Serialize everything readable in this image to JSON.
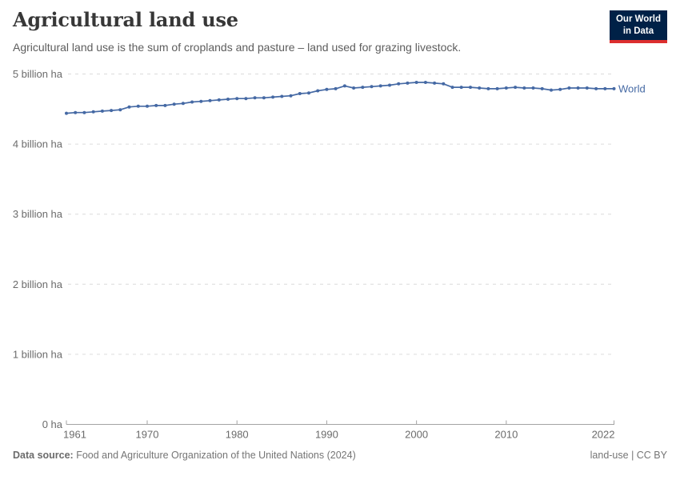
{
  "header": {
    "title": "Agricultural land use",
    "subtitle": "Agricultural land use is the sum of croplands and pasture – land used for grazing livestock.",
    "logo": {
      "line1": "Our World",
      "line2": "in Data",
      "bg_color": "#002147",
      "accent_color": "#dc2e2e"
    }
  },
  "footer": {
    "datasource_label": "Data source:",
    "datasource_value": "Food and Agriculture Organization of the United Nations (2024)",
    "rights": "land-use | CC BY"
  },
  "colors": {
    "series_blue": "#4569a4",
    "gridline": "#dcdcdc",
    "axis": "#a3a3a3",
    "axis_text": "#6b6b6b",
    "title_text": "#373737",
    "subtitle_text": "#5d5d5d",
    "footer_text": "#757575"
  },
  "chart_data": {
    "type": "line",
    "title": "Agricultural land use",
    "unit": "billion hectares",
    "xlabel": "",
    "ylabel": "",
    "xlim": [
      1961,
      2022
    ],
    "ylim": [
      0,
      5
    ],
    "grid": "horizontal-dashed",
    "legend_position": "end-of-line-label",
    "xticks": [
      1961,
      1970,
      1980,
      1990,
      2000,
      2010,
      2022
    ],
    "yticks": [
      {
        "value": 5,
        "label": "5 billion ha"
      },
      {
        "value": 4,
        "label": "4 billion ha"
      },
      {
        "value": 3,
        "label": "3 billion ha"
      },
      {
        "value": 2,
        "label": "2 billion ha"
      },
      {
        "value": 1,
        "label": "1 billion ha"
      },
      {
        "value": 0,
        "label": "0 ha"
      }
    ],
    "x": [
      1961,
      1962,
      1963,
      1964,
      1965,
      1966,
      1967,
      1968,
      1969,
      1970,
      1971,
      1972,
      1973,
      1974,
      1975,
      1976,
      1977,
      1978,
      1979,
      1980,
      1981,
      1982,
      1983,
      1984,
      1985,
      1986,
      1987,
      1988,
      1989,
      1990,
      1991,
      1992,
      1993,
      1994,
      1995,
      1996,
      1997,
      1998,
      1999,
      2000,
      2001,
      2002,
      2003,
      2004,
      2005,
      2006,
      2007,
      2008,
      2009,
      2010,
      2011,
      2012,
      2013,
      2014,
      2015,
      2016,
      2017,
      2018,
      2019,
      2020,
      2021,
      2022
    ],
    "series": [
      {
        "name": "World",
        "color": "#4569a4",
        "values": [
          4.44,
          4.45,
          4.45,
          4.46,
          4.47,
          4.48,
          4.49,
          4.53,
          4.54,
          4.54,
          4.55,
          4.55,
          4.57,
          4.58,
          4.6,
          4.61,
          4.62,
          4.63,
          4.64,
          4.65,
          4.65,
          4.66,
          4.66,
          4.67,
          4.68,
          4.69,
          4.72,
          4.73,
          4.76,
          4.78,
          4.79,
          4.83,
          4.8,
          4.81,
          4.82,
          4.83,
          4.84,
          4.86,
          4.87,
          4.88,
          4.88,
          4.87,
          4.86,
          4.81,
          4.81,
          4.81,
          4.8,
          4.79,
          4.79,
          4.8,
          4.81,
          4.8,
          4.8,
          4.79,
          4.77,
          4.78,
          4.8,
          4.8,
          4.8,
          4.79,
          4.79,
          4.79
        ]
      }
    ]
  }
}
